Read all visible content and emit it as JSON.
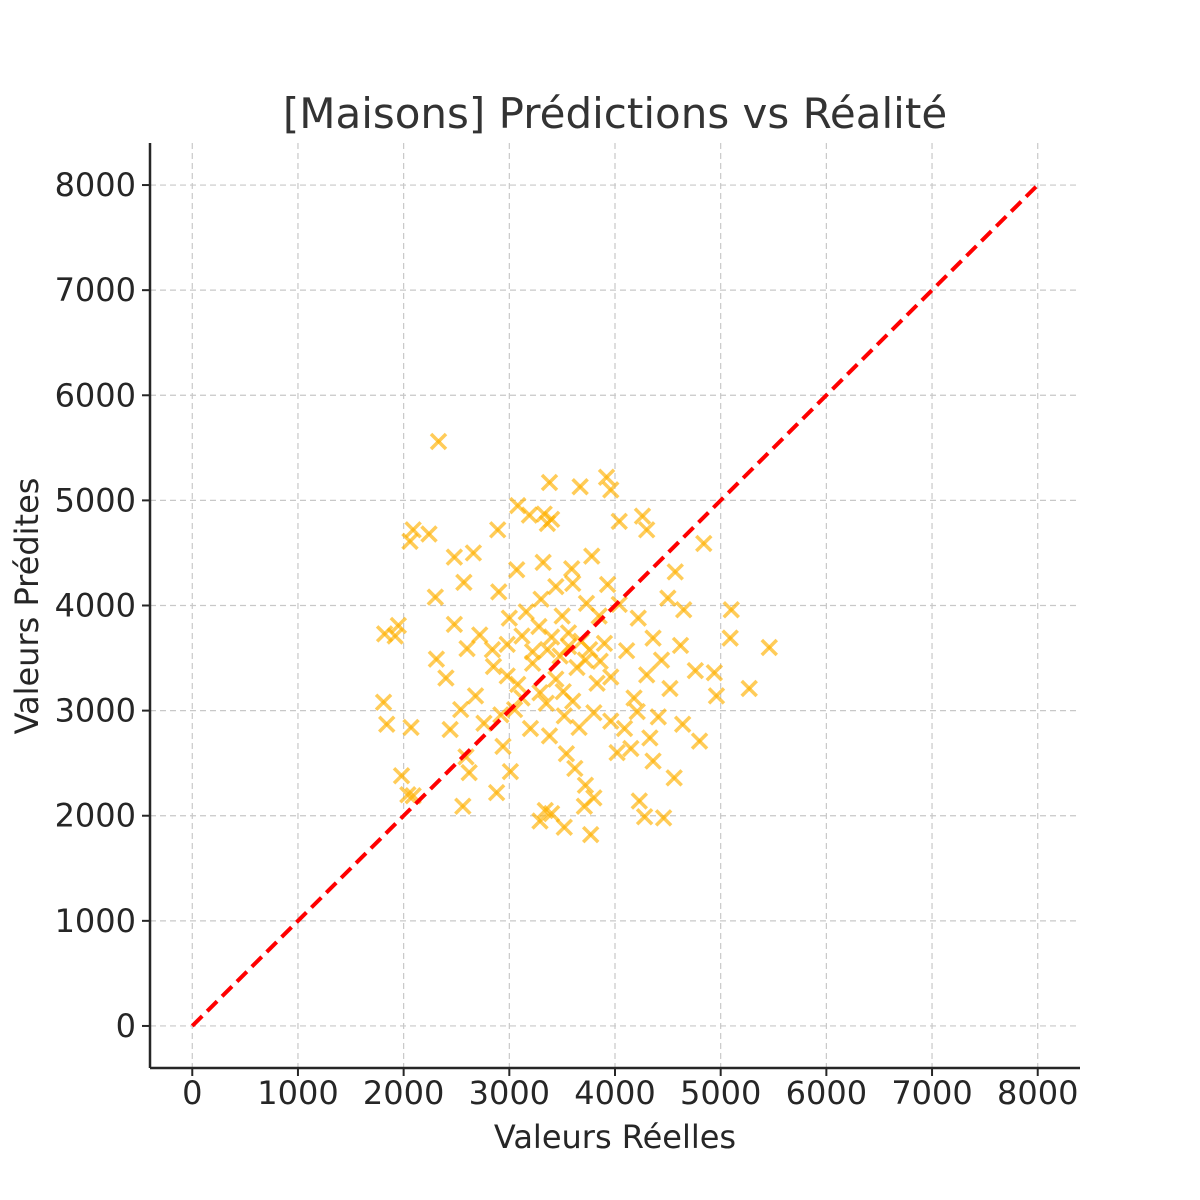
{
  "chart_data": {
    "type": "scatter",
    "title": "[Maisons] Prédictions vs Réalité",
    "xlabel": "Valeurs Réelles",
    "ylabel": "Valeurs Prédites",
    "xlim": [
      -400,
      8400
    ],
    "ylim": [
      -400,
      8400
    ],
    "x_ticks": [
      0,
      1000,
      2000,
      3000,
      4000,
      5000,
      6000,
      7000,
      8000
    ],
    "y_ticks": [
      0,
      1000,
      2000,
      3000,
      4000,
      5000,
      6000,
      7000,
      8000
    ],
    "x_tick_labels": [
      "0",
      "1000",
      "2000",
      "3000",
      "4000",
      "5000",
      "6000",
      "7000",
      "8000"
    ],
    "y_tick_labels": [
      "0",
      "1000",
      "2000",
      "3000",
      "4000",
      "5000",
      "6000",
      "7000",
      "8000"
    ],
    "grid": true,
    "marker": "x",
    "colors": {
      "points": "#FFB000",
      "reference_line": "#FF0000",
      "grid": "#c8c8c8",
      "axis": "#262626"
    },
    "reference_line": {
      "style": "dashed",
      "from": [
        0,
        0
      ],
      "to": [
        8000,
        8000
      ]
    },
    "series": [
      {
        "values": [
          [
            2330,
            5560
          ],
          [
            3380,
            5170
          ],
          [
            3920,
            5220
          ],
          [
            3960,
            5100
          ],
          [
            3670,
            5130
          ],
          [
            3080,
            4950
          ],
          [
            3190,
            4860
          ],
          [
            3400,
            4820
          ],
          [
            3330,
            4870
          ],
          [
            3360,
            4780
          ],
          [
            4260,
            4850
          ],
          [
            2090,
            4720
          ],
          [
            2240,
            4680
          ],
          [
            2060,
            4610
          ],
          [
            2480,
            4460
          ],
          [
            2660,
            4500
          ],
          [
            2890,
            4720
          ],
          [
            4300,
            4720
          ],
          [
            4840,
            4590
          ],
          [
            4040,
            4800
          ],
          [
            5100,
            3960
          ],
          [
            5460,
            3600
          ],
          [
            5090,
            3690
          ],
          [
            5270,
            3210
          ],
          [
            4960,
            3140
          ],
          [
            4800,
            2710
          ],
          [
            4940,
            3360
          ],
          [
            4360,
            2520
          ],
          [
            4560,
            2360
          ],
          [
            4460,
            1980
          ],
          [
            4230,
            2140
          ],
          [
            4280,
            1990
          ],
          [
            3400,
            2020
          ],
          [
            3290,
            1950
          ],
          [
            3520,
            1890
          ],
          [
            3340,
            2050
          ],
          [
            3770,
            1820
          ],
          [
            3710,
            2090
          ],
          [
            3800,
            2170
          ],
          [
            2880,
            2220
          ],
          [
            2560,
            2090
          ],
          [
            2040,
            2200
          ],
          [
            1980,
            2380
          ],
          [
            2090,
            2190
          ],
          [
            1840,
            2870
          ],
          [
            1810,
            3080
          ],
          [
            2070,
            2840
          ],
          [
            1820,
            3730
          ],
          [
            1920,
            3710
          ],
          [
            1950,
            3810
          ],
          [
            2300,
            4080
          ],
          [
            2570,
            4220
          ],
          [
            2310,
            3490
          ],
          [
            2400,
            3310
          ],
          [
            2590,
            2560
          ],
          [
            2620,
            2410
          ],
          [
            2940,
            2660
          ],
          [
            3010,
            2420
          ],
          [
            4640,
            2870
          ],
          [
            4650,
            3960
          ],
          [
            4500,
            4070
          ],
          [
            4620,
            3620
          ],
          [
            4760,
            3380
          ],
          [
            4570,
            4320
          ],
          [
            3930,
            4200
          ],
          [
            3540,
            2590
          ],
          [
            3620,
            2450
          ],
          [
            3720,
            2290
          ],
          [
            4020,
            2600
          ],
          [
            4150,
            2640
          ],
          [
            3220,
            3450
          ],
          [
            3360,
            3580
          ],
          [
            3480,
            3520
          ],
          [
            3560,
            3610
          ],
          [
            3640,
            3410
          ],
          [
            3120,
            3710
          ],
          [
            2980,
            3630
          ],
          [
            3080,
            3250
          ],
          [
            3290,
            3170
          ],
          [
            3440,
            3300
          ],
          [
            3720,
            3480
          ],
          [
            3830,
            3260
          ],
          [
            3900,
            3640
          ],
          [
            3960,
            3320
          ],
          [
            4110,
            3570
          ],
          [
            4180,
            3120
          ],
          [
            3160,
            3940
          ],
          [
            3300,
            4060
          ],
          [
            3440,
            4180
          ],
          [
            3600,
            4210
          ],
          [
            3730,
            4020
          ],
          [
            3850,
            3900
          ],
          [
            2850,
            3420
          ],
          [
            2720,
            3720
          ],
          [
            2680,
            3140
          ],
          [
            2760,
            2880
          ],
          [
            2920,
            2960
          ],
          [
            3050,
            3010
          ],
          [
            3200,
            2830
          ],
          [
            3380,
            2760
          ],
          [
            3520,
            2950
          ],
          [
            3660,
            2840
          ],
          [
            3800,
            2980
          ],
          [
            3960,
            2900
          ],
          [
            4090,
            2830
          ],
          [
            4210,
            2990
          ],
          [
            4300,
            3340
          ],
          [
            4360,
            3690
          ],
          [
            4220,
            3880
          ],
          [
            4040,
            4010
          ],
          [
            3500,
            3900
          ],
          [
            3280,
            3800
          ],
          [
            3000,
            3880
          ],
          [
            2900,
            4130
          ],
          [
            3070,
            4340
          ],
          [
            3320,
            4410
          ],
          [
            3590,
            4350
          ],
          [
            3780,
            4470
          ],
          [
            3220,
            3560
          ],
          [
            3400,
            3700
          ],
          [
            3560,
            3740
          ],
          [
            3680,
            3660
          ],
          [
            3760,
            3580
          ],
          [
            3860,
            3470
          ],
          [
            3510,
            3180
          ],
          [
            3600,
            3090
          ],
          [
            3350,
            3070
          ],
          [
            3120,
            3120
          ],
          [
            2980,
            3330
          ],
          [
            2840,
            3580
          ],
          [
            4440,
            3480
          ],
          [
            4520,
            3210
          ],
          [
            4410,
            2940
          ],
          [
            4330,
            2740
          ],
          [
            2600,
            3590
          ],
          [
            2480,
            3820
          ],
          [
            2540,
            3010
          ],
          [
            2440,
            2820
          ]
        ]
      }
    ]
  }
}
